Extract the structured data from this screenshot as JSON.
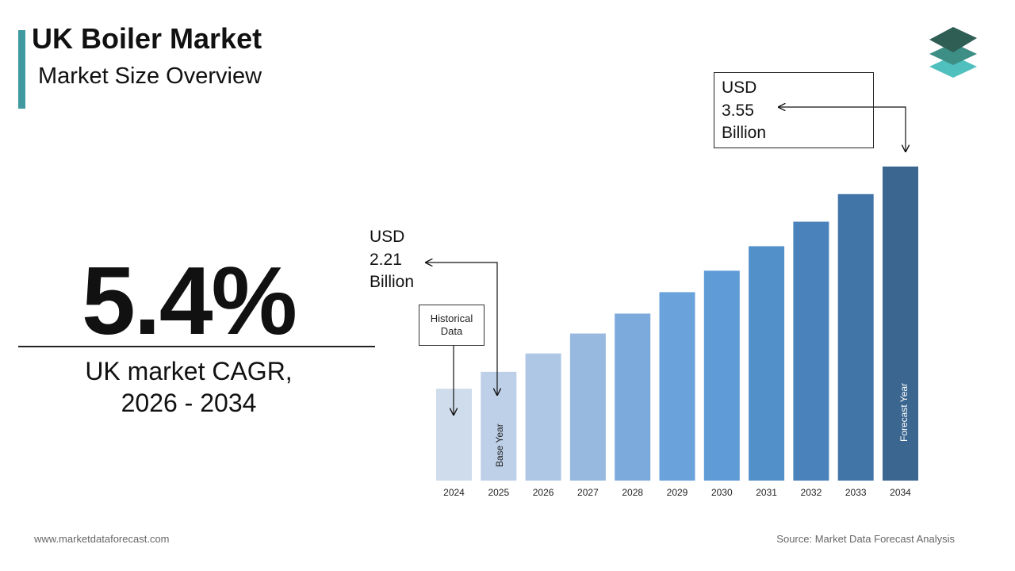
{
  "header": {
    "title": "UK Boiler Market",
    "subtitle": "Market Size Overview"
  },
  "kpi": {
    "cagr_value": "5.4%",
    "cagr_label_line1": "UK market CAGR,",
    "cagr_label_line2": "2026 - 2034"
  },
  "callouts": {
    "start": {
      "line1": "USD",
      "line2": "2.21",
      "line3": "Billion"
    },
    "end": {
      "line1": "USD",
      "line2": "3.55",
      "line3": "Billion"
    },
    "historical_line1": "Historical",
    "historical_line2": "Data",
    "base_year_label": "Base Year",
    "forecast_year_label": "Forecast Year"
  },
  "footer": {
    "website": "www.marketdataforecast.com",
    "source": "Source: Market Data Forecast Analysis"
  },
  "colors": {
    "accent": "#3f9a9f",
    "bars": [
      "#cfdcec",
      "#bdd0e8",
      "#adc7e5",
      "#98b9df",
      "#7daadd",
      "#6aa2db",
      "#5f9bd7",
      "#5290c9",
      "#4a83bb",
      "#4275a7",
      "#3a6690"
    ]
  },
  "chart_data": {
    "type": "bar",
    "categories": [
      "2024",
      "2025",
      "2026",
      "2027",
      "2028",
      "2029",
      "2030",
      "2031",
      "2032",
      "2033",
      "2034"
    ],
    "values": [
      2.1,
      2.21,
      2.33,
      2.46,
      2.59,
      2.73,
      2.87,
      3.03,
      3.19,
      3.37,
      3.55
    ],
    "unit": "USD Billion",
    "title": "",
    "xlabel": "",
    "ylabel": "",
    "ylim": [
      1.5,
      3.55
    ],
    "grid": false,
    "legend": "none"
  }
}
